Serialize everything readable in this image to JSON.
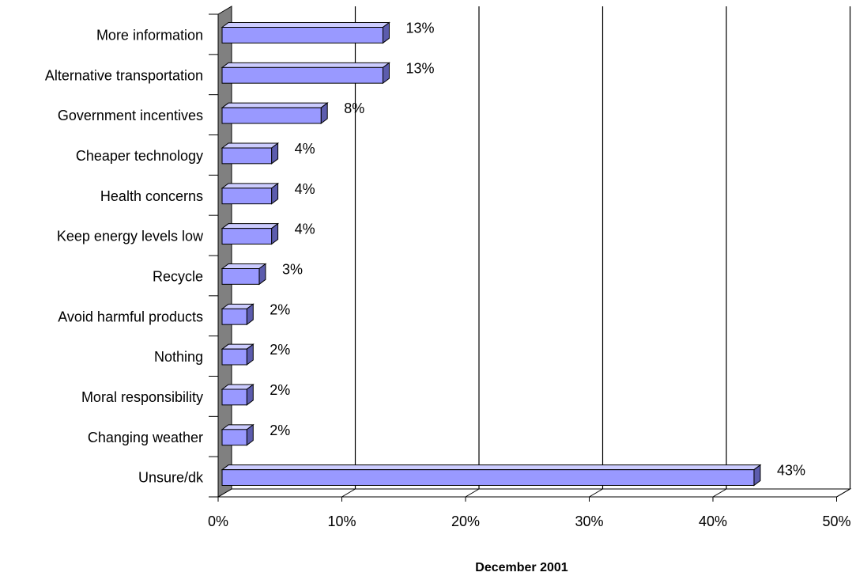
{
  "chart_data": {
    "type": "bar",
    "orientation": "horizontal",
    "categories": [
      "More information",
      "Alternative transportation",
      "Government incentives",
      "Cheaper technology",
      "Health concerns",
      "Keep energy levels low",
      "Recycle",
      "Avoid harmful products",
      "Nothing",
      "Moral responsibility",
      "Changing weather",
      "Unsure/dk"
    ],
    "values": [
      13,
      13,
      8,
      4,
      4,
      4,
      3,
      2,
      2,
      2,
      2,
      43
    ],
    "data_labels": [
      "13%",
      "13%",
      "8%",
      "4%",
      "4%",
      "4%",
      "3%",
      "2%",
      "2%",
      "2%",
      "2%",
      "43%"
    ],
    "x_ticks": [
      0,
      10,
      20,
      30,
      40,
      50
    ],
    "x_tick_labels": [
      "0%",
      "10%",
      "20%",
      "30%",
      "40%",
      "50%"
    ],
    "xlim": [
      0,
      50
    ],
    "xlabel": "December 2001",
    "grid": "vertical",
    "legend": "none",
    "colors": {
      "bar_face": "#9999ff",
      "bar_top": "#ccccff",
      "bar_side": "#5c5cad",
      "wall": "#808080",
      "floor": "#ffffff",
      "grid": "#000000"
    }
  }
}
